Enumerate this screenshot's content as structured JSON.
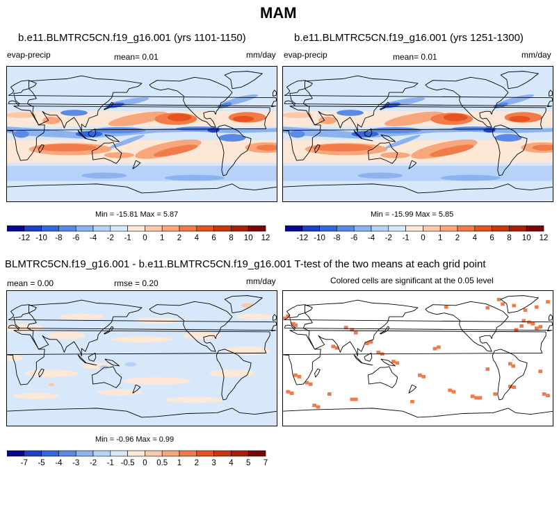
{
  "figure": {
    "title": "MAM"
  },
  "colors": {
    "field_scale": [
      "#08088c",
      "#1f3fc4",
      "#3466dc",
      "#5a8ae6",
      "#8cb3f0",
      "#b7d2f8",
      "#d8e8fb",
      "#fde8d8",
      "#fbc9a8",
      "#f8a67c",
      "#f27b4a",
      "#e8521e",
      "#c8380f",
      "#a8200a",
      "#7a0606"
    ],
    "signif": "#f07a4a",
    "coast": "#000000"
  },
  "panels": {
    "top_left": {
      "title": "b.e11.BLMTRC5CN.f19_g16.001 (yrs 1101-1150)",
      "variable": "evap-precip",
      "mean": "mean=   0.01",
      "units": "mm/day",
      "minmax": "Min = -15.81 Max =   5.87"
    },
    "top_right": {
      "title": "b.e11.BLMTRC5CN.f19_g16.001 (yrs 1251-1300)",
      "variable": "evap-precip",
      "mean": "mean=   0.01",
      "units": "mm/day",
      "minmax": "Min = -15.99 Max =   5.85"
    },
    "diff": {
      "title": "BLMTRC5CN.f19_g16.001 - b.e11.BLMTRC5CN.f19_g16.001",
      "mean": "mean =   0.00",
      "rmse": "rmse =   0.20",
      "units": "mm/day",
      "minmax": "Min =  -0.96 Max =   0.99"
    },
    "ttest": {
      "title": "T-test of the two means at each grid point",
      "subtitle": "Colored cells are significant at the 0.05 level"
    }
  },
  "chart_data": [
    {
      "type": "heatmap",
      "panel": "top_left",
      "colorbar_labels": [
        "-12",
        "-10",
        "-8",
        "-6",
        "-4",
        "-2",
        "-1",
        "0",
        "1",
        "2",
        "4",
        "6",
        "8",
        "10",
        "12"
      ]
    },
    {
      "type": "heatmap",
      "panel": "top_right",
      "colorbar_labels": [
        "-12",
        "-10",
        "-8",
        "-6",
        "-4",
        "-2",
        "-1",
        "0",
        "1",
        "2",
        "4",
        "6",
        "8",
        "10",
        "12"
      ]
    },
    {
      "type": "heatmap",
      "panel": "diff",
      "colorbar_labels": [
        "-7",
        "-5",
        "-4",
        "-3",
        "-2",
        "-1",
        "-0.5",
        "0",
        "0.5",
        "1",
        "2",
        "3",
        "4",
        "5",
        "7"
      ]
    },
    {
      "type": "heatmap",
      "panel": "ttest"
    }
  ]
}
